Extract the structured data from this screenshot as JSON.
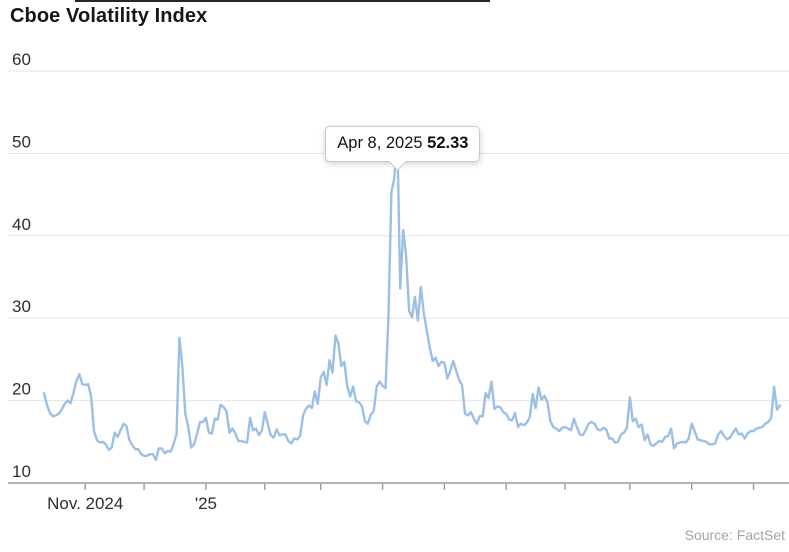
{
  "header": {
    "title": "Cboe Volatility Index"
  },
  "footer": {
    "source": "Source: FactSet"
  },
  "tooltip": {
    "date_label": "Apr 8, 2025",
    "value_label": "52.33",
    "target_date": "2025-04-08"
  },
  "chart_data": {
    "type": "line",
    "title": "Cboe Volatility Index",
    "xlabel": "",
    "ylabel": "",
    "ylim": [
      10,
      60
    ],
    "y_ticks": [
      10,
      20,
      30,
      40,
      50,
      60
    ],
    "grid": true,
    "legend": "none",
    "line_color": "#9cc0e4",
    "grid_color": "#e5e5e5",
    "axis_color": "#9b9b9b",
    "x_tick_labels": [
      {
        "month_index": 1,
        "label": "Nov. 2024"
      },
      {
        "month_index": 3,
        "label": "'25"
      }
    ],
    "annotation": {
      "text": "Apr 8, 2025 52.33",
      "x": "2025-04-08",
      "y": 52.33
    },
    "series": [
      {
        "name": "Cboe Volatility Index",
        "months": [
          {
            "m": "2024-10",
            "d": [
              14,
              15,
              16,
              17,
              18,
              21,
              22,
              23,
              24,
              25,
              28,
              29,
              30,
              31
            ],
            "v": [
              20.9,
              19.5,
              18.5,
              18.1,
              18.2,
              18.4,
              18.9,
              19.6,
              20.0,
              19.7,
              20.9,
              22.4,
              23.2,
              22.0
            ]
          },
          {
            "m": "2024-11",
            "d": [
              1,
              4,
              5,
              6,
              7,
              8,
              11,
              12,
              13,
              14,
              15,
              18,
              19,
              20,
              21,
              22,
              25,
              26,
              27,
              29
            ],
            "v": [
              21.9,
              22.0,
              20.5,
              16.3,
              15.2,
              14.9,
              15.0,
              14.7,
              14.0,
              14.3,
              16.1,
              15.6,
              16.4,
              17.2,
              16.9,
              15.2,
              14.6,
              14.1,
              14.1,
              13.5
            ]
          },
          {
            "m": "2024-12",
            "d": [
              2,
              3,
              4,
              5,
              6,
              9,
              10,
              11,
              12,
              13,
              16,
              17,
              18,
              19,
              20,
              23,
              24,
              26,
              27,
              30,
              31
            ],
            "v": [
              13.3,
              13.3,
              13.5,
              13.5,
              12.8,
              14.2,
              14.2,
              13.6,
              13.9,
              13.8,
              14.7,
              15.9,
              27.6,
              24.1,
              18.4,
              16.8,
              14.3,
              14.7,
              16.0,
              17.4,
              17.4
            ]
          },
          {
            "m": "2025-01",
            "d": [
              2,
              3,
              6,
              7,
              8,
              10,
              13,
              14,
              15,
              16,
              17,
              21,
              22,
              23,
              24,
              27,
              28,
              29,
              30,
              31
            ],
            "v": [
              17.9,
              16.1,
              16.0,
              17.8,
              17.7,
              19.5,
              19.2,
              18.7,
              16.1,
              16.6,
              16.0,
              15.1,
              15.1,
              15.0,
              14.9,
              17.9,
              16.4,
              16.6,
              15.8,
              16.4
            ]
          },
          {
            "m": "2025-02",
            "d": [
              3,
              4,
              5,
              6,
              7,
              10,
              11,
              12,
              13,
              14,
              18,
              19,
              20,
              21,
              24,
              25,
              26,
              27,
              28
            ],
            "v": [
              18.6,
              17.2,
              15.8,
              15.5,
              16.5,
              15.8,
              15.9,
              15.9,
              15.1,
              14.8,
              15.4,
              15.3,
              15.7,
              18.2,
              19.0,
              19.4,
              19.1,
              21.1,
              19.6
            ]
          },
          {
            "m": "2025-03",
            "d": [
              3,
              4,
              5,
              6,
              7,
              10,
              11,
              12,
              13,
              14,
              17,
              18,
              19,
              20,
              21,
              24,
              25,
              26,
              27,
              28,
              31
            ],
            "v": [
              22.8,
              23.5,
              21.9,
              24.9,
              23.4,
              27.9,
              26.9,
              24.2,
              24.7,
              21.8,
              20.5,
              21.7,
              19.9,
              19.8,
              19.3,
              17.5,
              17.2,
              18.3,
              18.7,
              21.7,
              22.3
            ]
          },
          {
            "m": "2025-04",
            "d": [
              1,
              2,
              3,
              4,
              7,
              8,
              9,
              10,
              11,
              14,
              15,
              16,
              17,
              21,
              22,
              23,
              24,
              25,
              28,
              29,
              30
            ],
            "v": [
              21.8,
              21.5,
              30.0,
              45.3,
              47.0,
              52.33,
              33.6,
              40.7,
              37.6,
              30.9,
              30.1,
              32.6,
              29.7,
              33.8,
              30.6,
              28.5,
              26.5,
              24.8,
              25.2,
              24.2,
              24.7
            ]
          },
          {
            "m": "2025-05",
            "d": [
              1,
              2,
              5,
              6,
              7,
              8,
              9,
              12,
              13,
              14,
              15,
              16,
              19,
              20,
              21,
              22,
              23,
              27,
              28,
              29,
              30
            ],
            "v": [
              24.6,
              22.7,
              23.6,
              24.8,
              23.6,
              22.5,
              21.9,
              18.4,
              18.2,
              18.6,
              17.8,
              17.2,
              18.1,
              18.1,
              20.9,
              20.3,
              22.3,
              19.0,
              19.3,
              19.2,
              18.6
            ]
          },
          {
            "m": "2025-06",
            "d": [
              2,
              3,
              4,
              5,
              6,
              9,
              10,
              11,
              12,
              13,
              16,
              17,
              18,
              20,
              23,
              24,
              25,
              26,
              27,
              30
            ],
            "v": [
              18.4,
              17.7,
              17.6,
              18.5,
              16.8,
              17.2,
              17.0,
              17.3,
              18.0,
              20.8,
              19.1,
              21.6,
              20.1,
              20.6,
              19.8,
              17.5,
              16.8,
              16.6,
              16.3,
              16.7
            ]
          },
          {
            "m": "2025-07",
            "d": [
              1,
              2,
              3,
              7,
              8,
              9,
              10,
              11,
              14,
              15,
              16,
              17,
              18,
              21,
              22,
              23,
              24,
              25,
              28,
              29,
              30,
              31
            ],
            "v": [
              16.8,
              16.6,
              16.4,
              17.8,
              16.8,
              15.9,
              15.8,
              16.4,
              17.2,
              17.4,
              17.2,
              16.5,
              16.4,
              16.7,
              16.5,
              15.4,
              15.4,
              14.9,
              15.0,
              15.9,
              16.1,
              16.7
            ]
          },
          {
            "m": "2025-08",
            "d": [
              1,
              4,
              5,
              6,
              7,
              8,
              11,
              12,
              13,
              14,
              15,
              18,
              19,
              20,
              21,
              22,
              25,
              26,
              27,
              28,
              29
            ],
            "v": [
              20.4,
              17.5,
              17.8,
              16.8,
              17.1,
              15.2,
              15.9,
              14.7,
              14.5,
              14.8,
              15.1,
              15.0,
              15.6,
              15.7,
              16.6,
              14.2,
              14.8,
              14.9,
              15.0,
              14.9,
              15.4
            ]
          },
          {
            "m": "2025-09",
            "d": [
              2,
              3,
              4,
              5,
              8,
              9,
              10,
              11,
              12,
              15,
              16,
              17,
              18,
              19,
              22,
              23,
              24,
              25,
              26,
              29,
              30
            ],
            "v": [
              17.2,
              16.3,
              15.3,
              15.2,
              15.1,
              15.0,
              14.7,
              14.7,
              14.8,
              15.9,
              16.3,
              15.7,
              15.3,
              15.5,
              16.1,
              16.6,
              15.9,
              16.0,
              15.4,
              16.0,
              16.3
            ]
          },
          {
            "m": "2025-10",
            "d": [
              1,
              2,
              3,
              6,
              7,
              8,
              9,
              10,
              13,
              14
            ],
            "v": [
              16.3,
              16.6,
              16.7,
              16.8,
              17.2,
              17.4,
              17.9,
              21.7,
              18.9,
              19.4
            ]
          }
        ]
      }
    ]
  }
}
